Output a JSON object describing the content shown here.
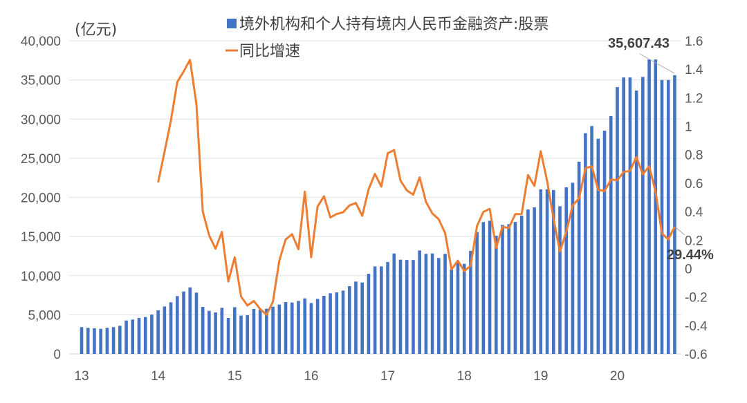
{
  "chart_data": {
    "type": "bar+line",
    "unit_label": "(亿元)",
    "legend": [
      {
        "name": "境外机构和个人持有境内人民币金融资产:股票",
        "type": "bar",
        "axis": "left",
        "color": "#4472C4"
      },
      {
        "name": "同比增速",
        "type": "line",
        "axis": "right",
        "color": "#ED7D31"
      }
    ],
    "legend_placement": "top",
    "grid": true,
    "y_left": {
      "range": [
        0,
        40000
      ],
      "ticks": [
        "0",
        "5,000",
        "10,000",
        "15,000",
        "20,000",
        "25,000",
        "30,000",
        "35,000",
        "40,000"
      ]
    },
    "y_right": {
      "range": [
        -0.6,
        1.6
      ],
      "ticks": [
        "-0.6",
        "-0.4",
        "-0.2",
        "0",
        "0.2",
        "0.4",
        "0.6",
        "0.8",
        "1",
        "1.2",
        "1.4",
        "1.6"
      ]
    },
    "x_ticks": [
      "13",
      "14",
      "15",
      "16",
      "17",
      "18",
      "19",
      "20"
    ],
    "x": [
      "2013-01",
      "2013-02",
      "2013-03",
      "2013-04",
      "2013-05",
      "2013-06",
      "2013-07",
      "2013-08",
      "2013-09",
      "2013-10",
      "2013-11",
      "2013-12",
      "2014-01",
      "2014-02",
      "2014-03",
      "2014-04",
      "2014-05",
      "2014-06",
      "2014-07",
      "2014-08",
      "2014-09",
      "2014-10",
      "2014-11",
      "2014-12",
      "2015-01",
      "2015-02",
      "2015-03",
      "2015-04",
      "2015-05",
      "2015-06",
      "2015-07",
      "2015-08",
      "2015-09",
      "2015-10",
      "2015-11",
      "2015-12",
      "2016-01",
      "2016-02",
      "2016-03",
      "2016-04",
      "2016-05",
      "2016-06",
      "2016-07",
      "2016-08",
      "2016-09",
      "2016-10",
      "2016-11",
      "2016-12",
      "2017-01",
      "2017-02",
      "2017-03",
      "2017-04",
      "2017-05",
      "2017-06",
      "2017-07",
      "2017-08",
      "2017-09",
      "2017-10",
      "2017-11",
      "2017-12",
      "2018-01",
      "2018-02",
      "2018-03",
      "2018-04",
      "2018-05",
      "2018-06",
      "2018-07",
      "2018-08",
      "2018-09",
      "2018-10",
      "2018-11",
      "2018-12",
      "2019-01",
      "2019-02",
      "2019-03",
      "2019-04",
      "2019-05",
      "2019-06",
      "2019-07",
      "2019-08",
      "2019-09",
      "2019-10",
      "2019-11",
      "2019-12",
      "2020-01",
      "2020-02",
      "2020-03",
      "2020-04",
      "2020-05",
      "2020-06",
      "2020-07",
      "2020-08",
      "2020-09",
      "2020-10"
    ],
    "series": [
      {
        "name": "境外机构和个人持有境内人民币金融资产:股票",
        "values": [
          3420,
          3330,
          3270,
          3210,
          3330,
          3420,
          3590,
          4270,
          4390,
          4590,
          4710,
          5030,
          5560,
          6060,
          6590,
          7390,
          7970,
          8500,
          7830,
          6000,
          5500,
          5300,
          5890,
          4590,
          5970,
          4890,
          4940,
          5740,
          5680,
          5770,
          6030,
          6300,
          6620,
          6560,
          6770,
          7090,
          6500,
          7030,
          7420,
          7740,
          7860,
          8090,
          8650,
          9240,
          9120,
          10240,
          11180,
          11180,
          11740,
          12830,
          12040,
          12000,
          12000,
          13220,
          12780,
          12830,
          12250,
          12780,
          10770,
          11650,
          11510,
          13160,
          15570,
          16840,
          17010,
          15100,
          16480,
          16570,
          16860,
          17660,
          18450,
          18720,
          21020,
          21040,
          20930,
          18870,
          21280,
          21870,
          24550,
          28200,
          29110,
          27490,
          28520,
          30380,
          34080,
          35320,
          35320,
          33640,
          35380,
          37620,
          37620,
          34990,
          34990,
          35607.43
        ]
      },
      {
        "name": "同比增速",
        "values": [
          null,
          null,
          null,
          null,
          null,
          null,
          null,
          null,
          null,
          null,
          null,
          null,
          0.605,
          0.82,
          1.04,
          1.31,
          1.385,
          1.466,
          1.155,
          0.4,
          0.233,
          0.139,
          0.257,
          -0.091,
          0.079,
          -0.196,
          -0.26,
          -0.228,
          -0.285,
          -0.325,
          -0.233,
          0.055,
          0.204,
          0.241,
          0.136,
          0.54,
          0.079,
          0.435,
          0.508,
          0.359,
          0.383,
          0.395,
          0.443,
          0.46,
          0.37,
          0.557,
          0.665,
          0.576,
          0.81,
          0.832,
          0.618,
          0.549,
          0.519,
          0.641,
          0.468,
          0.387,
          0.346,
          0.249,
          -0.006,
          0.055,
          -0.018,
          0.019,
          0.298,
          0.398,
          0.419,
          0.144,
          0.293,
          0.285,
          0.382,
          0.383,
          0.657,
          0.581,
          0.824,
          0.613,
          0.35,
          0.12,
          0.257,
          0.443,
          0.492,
          0.705,
          0.718,
          0.553,
          0.544,
          0.625,
          0.621,
          0.678,
          0.686,
          0.783,
          0.662,
          0.718,
          0.54,
          0.246,
          0.204,
          0.2944
        ]
      }
    ],
    "annotations": {
      "last_bar": "35,607.43",
      "last_growth": "29.44%"
    }
  }
}
